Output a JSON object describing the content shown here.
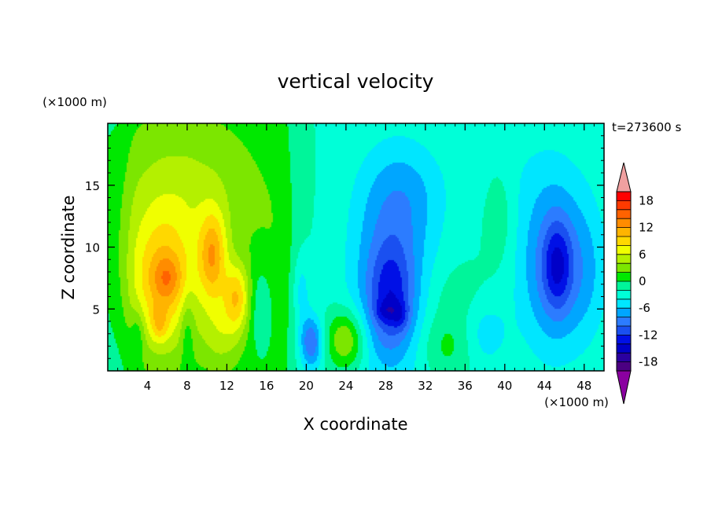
{
  "chart_data": {
    "type": "heatmap",
    "title": "vertical velocity",
    "xlabel": "X coordinate",
    "ylabel": "Z coordinate",
    "x_unit": "(×1000 m)",
    "y_unit": "(×1000 m)",
    "time_label": "t=273600 s",
    "xlim": [
      0,
      50
    ],
    "ylim": [
      0,
      20
    ],
    "x_ticks": [
      4,
      8,
      12,
      16,
      20,
      24,
      28,
      32,
      36,
      40,
      44,
      48
    ],
    "y_ticks": [
      5,
      10,
      15
    ],
    "colorbar": {
      "levels": [
        -20,
        -18,
        -16,
        -14,
        -12,
        -10,
        -8,
        -6,
        -4,
        -2,
        0,
        2,
        4,
        6,
        8,
        10,
        12,
        14,
        16,
        18,
        20
      ],
      "colors": [
        "#4b0082",
        "#2a00a0",
        "#0000c8",
        "#0010e6",
        "#1a50f0",
        "#2c7cff",
        "#00a6ff",
        "#00e6ff",
        "#00ffd8",
        "#00f59a",
        "#00e800",
        "#7ce600",
        "#b4f000",
        "#f0ff00",
        "#ffd800",
        "#ffb400",
        "#ff8c00",
        "#ff6200",
        "#ff3a00",
        "#ff0000"
      ],
      "under_color": "#8a00a0",
      "over_color": "#f0a0a0",
      "tick_labels": [
        "18",
        "12",
        "6",
        "0",
        "-6",
        "-12",
        "-18"
      ],
      "tick_values": [
        18,
        12,
        6,
        0,
        -6,
        -12,
        -18
      ]
    },
    "field_features": [
      {
        "x": 5.5,
        "z": 7.0,
        "sx": 2.6,
        "sz": 4.0,
        "amp": 9
      },
      {
        "x": 6.0,
        "z": 7.5,
        "sx": 1.0,
        "sz": 1.3,
        "amp": 4
      },
      {
        "x": 5.2,
        "z": 3.8,
        "sx": 0.6,
        "sz": 1.0,
        "amp": 4
      },
      {
        "x": 7.5,
        "z": 14.5,
        "sx": 5.5,
        "sz": 4.5,
        "amp": 4
      },
      {
        "x": 10.6,
        "z": 9.2,
        "sx": 1.0,
        "sz": 2.6,
        "amp": 9
      },
      {
        "x": 13.0,
        "z": 6.0,
        "sx": 0.9,
        "sz": 1.9,
        "amp": 8
      },
      {
        "x": 11.5,
        "z": 3.0,
        "sx": 1.5,
        "sz": 2.2,
        "amp": 4
      },
      {
        "x": 3.0,
        "z": 3.0,
        "sx": 0.5,
        "sz": 1.5,
        "amp": -3
      },
      {
        "x": 8.0,
        "z": 3.5,
        "sx": 0.5,
        "sz": 2.0,
        "amp": -3
      },
      {
        "x": 15.5,
        "z": 5.0,
        "sx": 0.8,
        "sz": 2.5,
        "amp": -3
      },
      {
        "x": 17.0,
        "z": 8.0,
        "sx": 1.5,
        "sz": 5.0,
        "amp": 1
      },
      {
        "x": 20.5,
        "z": 2.3,
        "sx": 0.8,
        "sz": 1.5,
        "amp": -8
      },
      {
        "x": 19.5,
        "z": 6.5,
        "sx": 0.6,
        "sz": 2.0,
        "amp": -3
      },
      {
        "x": 24.0,
        "z": 2.5,
        "sx": 1.4,
        "sz": 1.7,
        "amp": 7
      },
      {
        "x": 28.5,
        "z": 7.5,
        "sx": 3.0,
        "sz": 6.0,
        "amp": -6
      },
      {
        "x": 28.5,
        "z": 6.0,
        "sx": 1.6,
        "sz": 3.0,
        "amp": -6
      },
      {
        "x": 28.0,
        "z": 4.8,
        "sx": 0.8,
        "sz": 0.6,
        "amp": -3
      },
      {
        "x": 29.5,
        "z": 4.5,
        "sx": 0.6,
        "sz": 0.8,
        "amp": -3
      },
      {
        "x": 30.0,
        "z": 14.5,
        "sx": 3.0,
        "sz": 3.0,
        "amp": -3
      },
      {
        "x": 34.0,
        "z": 2.0,
        "sx": 2.0,
        "sz": 1.8,
        "amp": 3
      },
      {
        "x": 34.5,
        "z": 6.0,
        "sx": 2.5,
        "sz": 2.0,
        "amp": 1.5
      },
      {
        "x": 38.0,
        "z": 3.0,
        "sx": 1.6,
        "sz": 2.0,
        "amp": -3
      },
      {
        "x": 39.5,
        "z": 12.5,
        "sx": 1.1,
        "sz": 3.0,
        "amp": 2
      },
      {
        "x": 45.0,
        "z": 8.5,
        "sx": 2.6,
        "sz": 5.0,
        "amp": -7
      },
      {
        "x": 45.3,
        "z": 8.5,
        "sx": 1.0,
        "sz": 2.5,
        "amp": -6
      },
      {
        "x": 48.5,
        "z": 8.0,
        "sx": 1.5,
        "sz": 4.0,
        "amp": -2
      },
      {
        "x": 42.0,
        "z": 16.0,
        "sx": 4.0,
        "sz": 3.0,
        "amp": -1
      }
    ],
    "background_value": 0.5,
    "right_region_bias": {
      "x_start": 18.5,
      "amp": -2.6
    },
    "left_region_bias": {
      "x_end": 2.0,
      "amp": -1.5
    }
  }
}
